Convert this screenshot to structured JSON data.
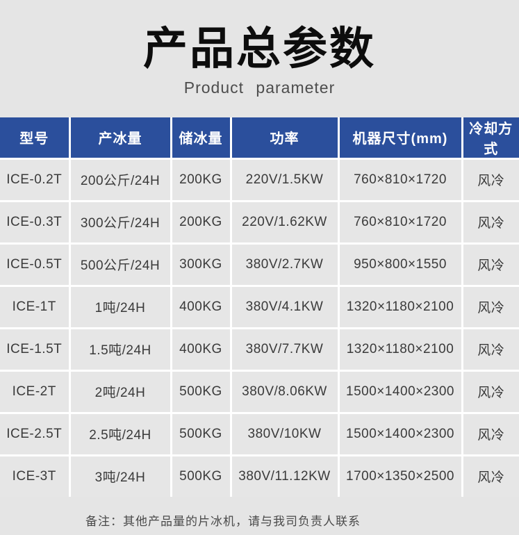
{
  "header": {
    "title": "产品总参数",
    "subtitle": "Product  parameter"
  },
  "table": {
    "header_bg_color": "#2b4f9c",
    "header_text_color": "#ffffff",
    "grid_line_color": "#ffffff",
    "cell_bg_color": "#e6e6e6",
    "columns": [
      "型号",
      "产冰量",
      "储冰量",
      "功率",
      "机器尺寸(mm)",
      "冷却方式"
    ],
    "rows": [
      [
        "ICE-0.2T",
        "200公斤/24H",
        "200KG",
        "220V/1.5KW",
        "760×810×1720",
        "风冷"
      ],
      [
        "ICE-0.3T",
        "300公斤/24H",
        "200KG",
        "220V/1.62KW",
        "760×810×1720",
        "风冷"
      ],
      [
        "ICE-0.5T",
        "500公斤/24H",
        "300KG",
        "380V/2.7KW",
        "950×800×1550",
        "风冷"
      ],
      [
        "ICE-1T",
        "1吨/24H",
        "400KG",
        "380V/4.1KW",
        "1320×1180×2100",
        "风冷"
      ],
      [
        "ICE-1.5T",
        "1.5吨/24H",
        "400KG",
        "380V/7.7KW",
        "1320×1180×2100",
        "风冷"
      ],
      [
        "ICE-2T",
        "2吨/24H",
        "500KG",
        "380V/8.06KW",
        "1500×1400×2300",
        "风冷"
      ],
      [
        "ICE-2.5T",
        "2.5吨/24H",
        "500KG",
        "380V/10KW",
        "1500×1400×2300",
        "风冷"
      ],
      [
        "ICE-3T",
        "3吨/24H",
        "500KG",
        "380V/11.12KW",
        "1700×1350×2500",
        "风冷"
      ]
    ]
  },
  "note": {
    "text": "备注：其他产品量的片冰机，请与我司负责人联系"
  }
}
